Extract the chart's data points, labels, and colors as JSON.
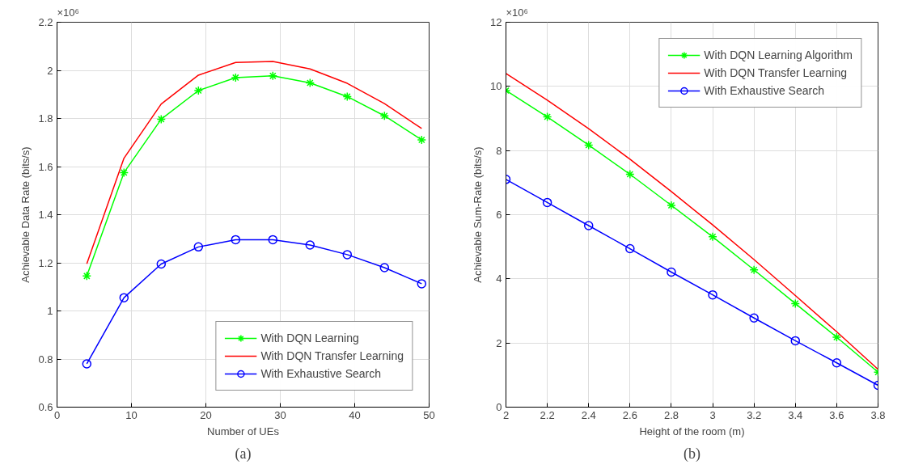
{
  "chart_data": [
    {
      "type": "line",
      "xlabel": "Number of UEs",
      "ylabel": "Achievable Data Rate (bits/s)",
      "annotations": [
        "×10⁶",
        "(a)"
      ],
      "x": [
        4,
        9,
        14,
        19,
        24,
        29,
        34,
        39,
        44,
        49
      ],
      "series": [
        {
          "name": "With DQN Learning",
          "color": "#00ff00",
          "marker": "cross",
          "values": [
            1.145,
            1.575,
            1.797,
            1.916,
            1.97,
            1.977,
            1.948,
            1.891,
            1.811,
            1.711
          ]
        },
        {
          "name": "With DQN Transfer Learning",
          "color": "#ff0000",
          "marker": "none",
          "values": [
            1.196,
            1.635,
            1.86,
            1.98,
            2.033,
            2.037,
            2.006,
            1.946,
            1.862,
            1.758
          ]
        },
        {
          "name": "With Exhaustive Search",
          "color": "#0000ff",
          "marker": "circle",
          "values": [
            0.78,
            1.055,
            1.195,
            1.266,
            1.296,
            1.296,
            1.274,
            1.234,
            1.18,
            1.113
          ]
        }
      ],
      "xlim": [
        0,
        50
      ],
      "xticks": [
        0,
        10,
        20,
        30,
        40,
        50
      ],
      "ylim": [
        0.6,
        2.2
      ],
      "yticks": [
        0.6,
        0.8,
        1,
        1.2,
        1.4,
        1.6,
        1.8,
        2,
        2.2
      ],
      "grid": true,
      "legend": "bottom right"
    },
    {
      "type": "line",
      "xlabel": "Height of the room (m)",
      "ylabel": "Achievable Sum-Rate (bits/s)",
      "annotations": [
        "×10⁶",
        "(b)"
      ],
      "x": [
        2,
        2.2,
        2.4,
        2.6,
        2.8,
        3,
        3.2,
        3.4,
        3.6,
        3.8
      ],
      "series": [
        {
          "name": "With DQN Learning Algorithm",
          "color": "#00ff00",
          "marker": "cross",
          "values": [
            9.87,
            9.05,
            8.17,
            7.26,
            6.29,
            5.31,
            4.28,
            3.23,
            2.18,
            1.09
          ]
        },
        {
          "name": "With DQN Transfer Learning",
          "color": "#ff0000",
          "marker": "none",
          "values": [
            10.4,
            9.57,
            8.68,
            7.73,
            6.72,
            5.68,
            4.6,
            3.48,
            2.35,
            1.18
          ]
        },
        {
          "name": "With Exhaustive Search",
          "color": "#0000ff",
          "marker": "circle",
          "values": [
            7.1,
            6.38,
            5.66,
            4.94,
            4.21,
            3.5,
            2.78,
            2.07,
            1.38,
            0.68
          ]
        }
      ],
      "xlim": [
        2,
        3.8
      ],
      "xticks": [
        2,
        2.2,
        2.4,
        2.6,
        2.8,
        3,
        3.2,
        3.4,
        3.6,
        3.8
      ],
      "ylim": [
        0,
        12
      ],
      "yticks": [
        0,
        2,
        4,
        6,
        8,
        10,
        12
      ],
      "grid": true,
      "legend": "top right"
    }
  ]
}
